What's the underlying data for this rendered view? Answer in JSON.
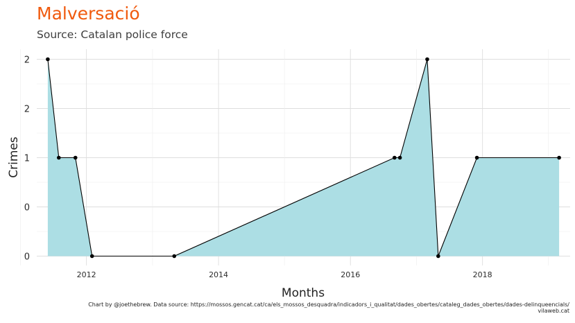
{
  "chart_data": {
    "type": "area",
    "title": "Malversació",
    "subtitle": "Source: Catalan police force",
    "xlabel": "Months",
    "ylabel": "Crimes",
    "x_ticks": [
      "2012",
      "2014",
      "2016",
      "2018"
    ],
    "y_tick_labels": [
      "0",
      "0",
      "1",
      "2",
      "2"
    ],
    "y_tick_values": [
      0,
      0.5,
      1,
      1.5,
      2
    ],
    "xlim": [
      "2011-04-01",
      "2019-05-01"
    ],
    "ylim": [
      0,
      2
    ],
    "grid": true,
    "series": [
      {
        "x": [
          "2011-06-01",
          "2011-08-01",
          "2011-11-01",
          "2012-02-01",
          "2013-05-01",
          "2016-09-01",
          "2016-10-01",
          "2017-03-01",
          "2017-05-01",
          "2017-12-01",
          "2019-03-01"
        ],
        "y": [
          2,
          1,
          1,
          0,
          0,
          1,
          1,
          2,
          0,
          1,
          1
        ]
      }
    ],
    "colors": {
      "fill": "#acdee4",
      "line": "#000000",
      "points": "#000000",
      "title": "#f05a0e"
    },
    "caption": [
      "Chart by @joethebrew. Data source: https://mossos.gencat.cat/ca/els_mossos_desquadra/indicadors_i_qualitat/dades_obertes/cataleg_dades_obertes/dades-delinqueencials/",
      "vilaweb.cat"
    ]
  }
}
